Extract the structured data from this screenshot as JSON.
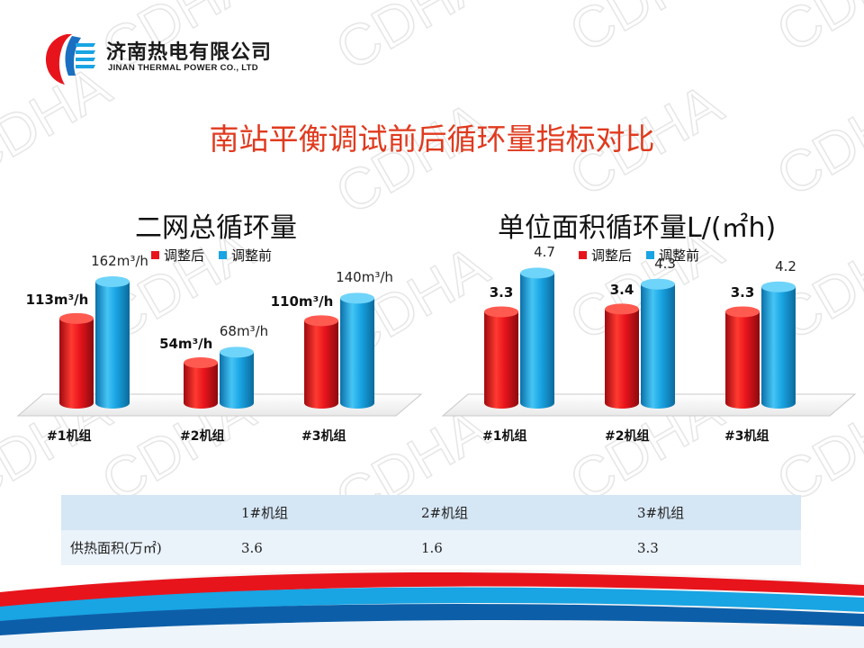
{
  "company": {
    "name_cn": "济南热电有限公司",
    "name_en": "JINAN THERMAL POWER CO., LTD"
  },
  "slide_title": "南站平衡调试前后循环量指标对比",
  "watermark_text": "CDHA",
  "colors": {
    "after": "#e8141c",
    "before": "#19a4e3",
    "title": "#e03a1e"
  },
  "chart_data": [
    {
      "type": "bar",
      "title": "二网总循环量",
      "categories": [
        "#1机组",
        "#2机组",
        "#3机组"
      ],
      "series": [
        {
          "name": "调整后",
          "values": [
            113,
            54,
            110
          ],
          "labels": [
            "113m³/h",
            "54m³/h",
            "110m³/h"
          ]
        },
        {
          "name": "调整前",
          "values": [
            162,
            68,
            140
          ],
          "labels": [
            "162m³/h",
            "68m³/h",
            "140m³/h"
          ]
        }
      ],
      "ylim": [
        0,
        180
      ],
      "legend": "top"
    },
    {
      "type": "bar",
      "title": "单位面积循环量L/(㎡h)",
      "categories": [
        "#1机组",
        "#2机组",
        "#3机组"
      ],
      "series": [
        {
          "name": "调整后",
          "values": [
            3.3,
            3.4,
            3.3
          ],
          "labels": [
            "3.3",
            "3.4",
            "3.3"
          ]
        },
        {
          "name": "调整前",
          "values": [
            4.7,
            4.3,
            4.2
          ],
          "labels": [
            "4.7",
            "4.3",
            "4.2"
          ]
        }
      ],
      "ylim": [
        0,
        5.2
      ],
      "legend": "top"
    }
  ],
  "table": {
    "headers": [
      "",
      "1#机组",
      "2#机组",
      "3#机组"
    ],
    "rows": [
      [
        "供热面积(万㎡)",
        "3.6",
        "1.6",
        "3.3"
      ]
    ]
  }
}
